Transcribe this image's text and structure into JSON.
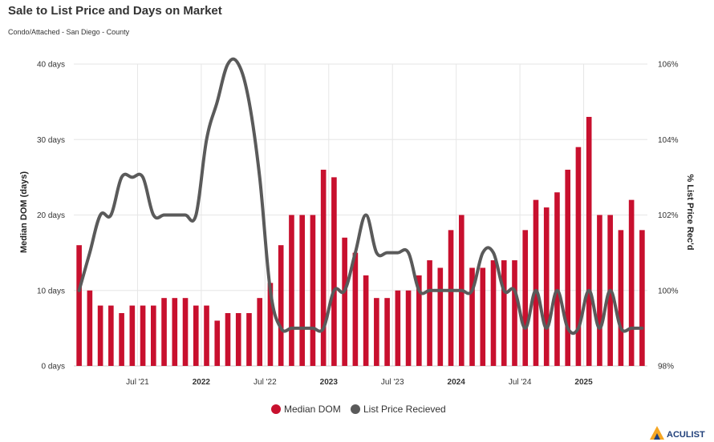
{
  "title": "Sale to List Price and Days on Market",
  "subtitle": "Condo/Attached - San Diego - County",
  "logo_text": "ACULIST",
  "colors": {
    "bar": "#c8102e",
    "line": "#5a5a5a",
    "grid": "#e6e6e6",
    "logo_accent": "#f5a623",
    "logo_dark": "#1f3f7a"
  },
  "chart_data": {
    "type": "bar+line",
    "categories": [
      "2021-01",
      "2021-02",
      "2021-03",
      "2021-04",
      "2021-05",
      "2021-06",
      "2021-07",
      "2021-08",
      "2021-09",
      "2021-10",
      "2021-11",
      "2021-12",
      "2022-01",
      "2022-02",
      "2022-03",
      "2022-04",
      "2022-05",
      "2022-06",
      "2022-07",
      "2022-08",
      "2022-09",
      "2022-10",
      "2022-11",
      "2022-12",
      "2023-01",
      "2023-02",
      "2023-03",
      "2023-04",
      "2023-05",
      "2023-06",
      "2023-07",
      "2023-08",
      "2023-09",
      "2023-10",
      "2023-11",
      "2023-12",
      "2024-01",
      "2024-02",
      "2024-03",
      "2024-04",
      "2024-05",
      "2024-06",
      "2024-07",
      "2024-08",
      "2024-09",
      "2024-10",
      "2024-11",
      "2024-12",
      "2025-01",
      "2025-02",
      "2025-03",
      "2025-04",
      "2025-05",
      "2025-06"
    ],
    "series": [
      {
        "name": "Median DOM",
        "type": "bar",
        "axis": "left",
        "values": [
          16,
          10,
          8,
          8,
          7,
          8,
          8,
          8,
          9,
          9,
          9,
          8,
          8,
          6,
          7,
          7,
          7,
          9,
          11,
          16,
          20,
          20,
          20,
          26,
          25,
          17,
          15,
          12,
          9,
          9,
          10,
          10,
          12,
          14,
          13,
          18,
          20,
          13,
          13,
          14,
          14,
          14,
          18,
          22,
          21,
          23,
          26,
          29,
          33,
          20,
          20,
          18,
          22,
          18
        ]
      },
      {
        "name": "List Price Recieved",
        "type": "line",
        "axis": "right",
        "values": [
          100,
          101,
          102,
          102,
          103,
          103,
          103,
          102,
          102,
          102,
          102,
          102,
          104,
          105,
          106,
          106,
          105,
          103,
          100,
          99,
          99,
          99,
          99,
          99,
          100,
          100,
          101,
          102,
          101,
          101,
          101,
          101,
          100,
          100,
          100,
          100,
          100,
          100,
          101,
          101,
          100,
          100,
          99,
          100,
          99,
          100,
          99,
          99,
          100,
          99,
          100,
          99,
          99,
          99
        ]
      }
    ],
    "xlabel": "",
    "ylabel_left": "Median DOM (days)",
    "ylabel_right": "% List Price Rec'd",
    "ylim_left": [
      0,
      40
    ],
    "ylim_right": [
      98,
      106
    ],
    "left_ticks": [
      "0 days",
      "10 days",
      "20 days",
      "30 days",
      "40 days"
    ],
    "right_ticks": [
      "98%",
      "100%",
      "102%",
      "104%",
      "106%"
    ],
    "x_tick_labels": [
      {
        "label": "Jul '21",
        "index": 6,
        "bold": false
      },
      {
        "label": "2022",
        "index": 12,
        "bold": true
      },
      {
        "label": "Jul '22",
        "index": 18,
        "bold": false
      },
      {
        "label": "2023",
        "index": 24,
        "bold": true
      },
      {
        "label": "Jul '23",
        "index": 30,
        "bold": false
      },
      {
        "label": "2024",
        "index": 36,
        "bold": true
      },
      {
        "label": "Jul '24",
        "index": 42,
        "bold": false
      },
      {
        "label": "2025",
        "index": 48,
        "bold": true
      }
    ],
    "legend": [
      "Median DOM",
      "List Price Recieved"
    ],
    "legend_position": "bottom-center",
    "grid": true
  }
}
